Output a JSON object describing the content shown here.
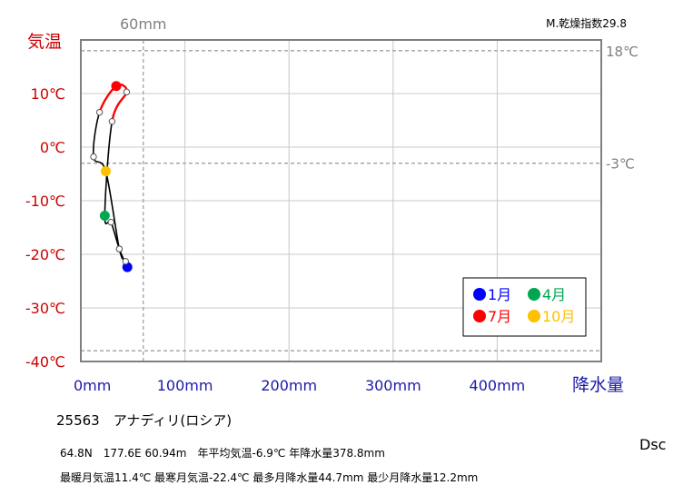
{
  "chart_data": {
    "type": "line",
    "title": "",
    "xlabel": "降水量",
    "ylabel": "気温",
    "xlim": [
      0,
      500
    ],
    "ylim": [
      -40,
      20
    ],
    "x_ticks": [
      "0mm",
      "100mm",
      "200mm",
      "300mm",
      "400mm"
    ],
    "y_ticks": [
      "10℃",
      "0℃",
      "-10℃",
      "-20℃",
      "-30℃",
      "-40℃"
    ],
    "reference_lines": {
      "precip_60": {
        "value": 60,
        "label": "60mm"
      },
      "temp_18": {
        "value": 18,
        "label": "18℃"
      },
      "temp_minus3": {
        "value": -3,
        "label": "-3℃"
      },
      "temp_minus38": {
        "value": -38
      }
    },
    "dryness_index": "M.乾燥指数29.8",
    "grid": true,
    "legend_position": "bottom-right",
    "legend": [
      {
        "label": "1月",
        "color": "#0000ff"
      },
      {
        "label": "4月",
        "color": "#00a651"
      },
      {
        "label": "7月",
        "color": "#ff0000"
      },
      {
        "label": "10月",
        "color": "#ffc000"
      }
    ],
    "series": [
      {
        "months": [
          1,
          2,
          3,
          4,
          5,
          6,
          7,
          8,
          9,
          10,
          11,
          12
        ],
        "precip_mm": [
          44.7,
          37,
          29,
          23,
          30,
          44,
          34,
          18,
          12.2,
          24,
          37,
          43
        ],
        "temp_c": [
          -22.4,
          -19,
          -14,
          -12.8,
          4.8,
          10.3,
          11.4,
          6.5,
          -1.8,
          -4.5,
          -19,
          -21.3
        ],
        "highlight_colors": {
          "1": "#0000ff",
          "4": "#00a651",
          "7": "#ff0000",
          "10": "#ffc000"
        }
      }
    ]
  },
  "station": {
    "title": "25563　アナディリ(ロシア)",
    "line1": "64.8N　177.6E 60.94m　年平均気温-6.9℃ 年降水量378.8mm",
    "line2": "最暖月気温11.4℃ 最寒月気温-22.4℃ 最多月降水量44.7mm 最少月降水量12.2mm",
    "koppen": "Dsc"
  },
  "colors": {
    "axis_text_temp": "#cc0000",
    "axis_text_precip": "#1a1aaa",
    "reference_text": "#808080",
    "frame": "#808080",
    "summer_segment": "#ff0000"
  }
}
